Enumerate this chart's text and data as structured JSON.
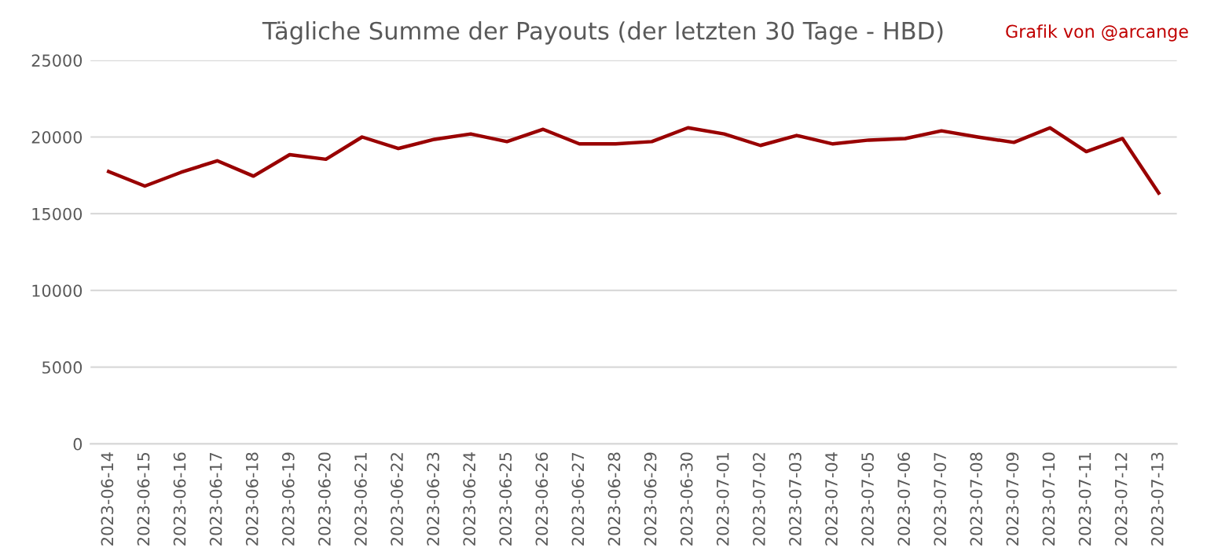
{
  "chart_data": {
    "type": "line",
    "title": "Tägliche Summe der Payouts (der letzten 30 Tage - HBD)",
    "annotations": [
      "Grafik von @arcange"
    ],
    "categories": [
      "2023-06-14",
      "2023-06-15",
      "2023-06-16",
      "2023-06-17",
      "2023-06-18",
      "2023-06-19",
      "2023-06-20",
      "2023-06-21",
      "2023-06-22",
      "2023-06-23",
      "2023-06-24",
      "2023-06-25",
      "2023-06-26",
      "2023-06-27",
      "2023-06-28",
      "2023-06-29",
      "2023-06-30",
      "2023-07-01",
      "2023-07-02",
      "2023-07-03",
      "2023-07-04",
      "2023-07-05",
      "2023-07-06",
      "2023-07-07",
      "2023-07-08",
      "2023-07-09",
      "2023-07-10",
      "2023-07-11",
      "2023-07-12",
      "2023-07-13"
    ],
    "series": [
      {
        "color": "#990000",
        "values": [
          17750,
          16800,
          17700,
          18450,
          17450,
          18850,
          18550,
          20000,
          19250,
          19850,
          20200,
          19700,
          20500,
          19550,
          19550,
          19700,
          20600,
          20200,
          19450,
          20100,
          19550,
          19800,
          19900,
          20400,
          20000,
          19650,
          20600,
          19050,
          19900,
          16350
        ]
      }
    ],
    "ylim": [
      0,
      25000
    ],
    "yticks": [
      0,
      5000,
      10000,
      15000,
      20000,
      25000
    ],
    "grid": "y",
    "legend": false,
    "marker": "none",
    "line_style": "solid"
  }
}
